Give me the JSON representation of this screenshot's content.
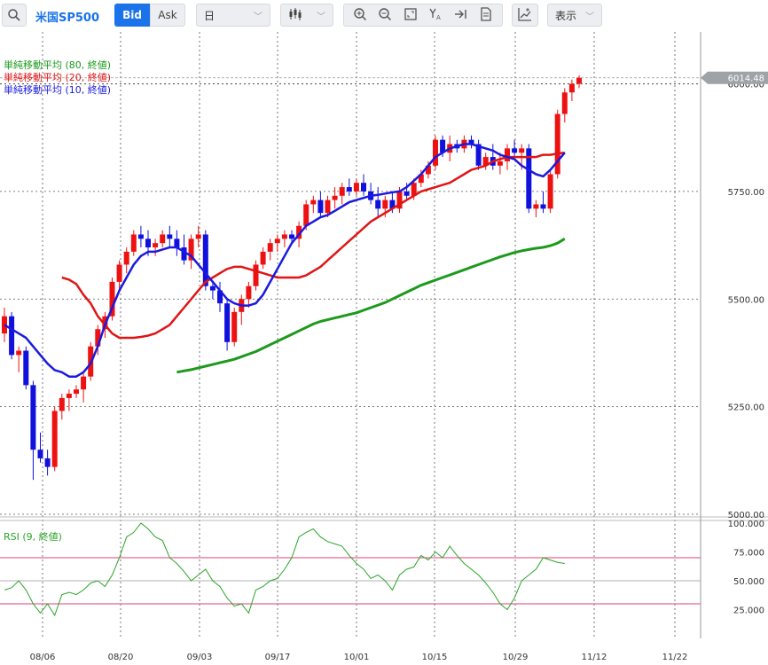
{
  "toolbar": {
    "symbol": "米国SP500",
    "bid_label": "Bid",
    "ask_label": "Ask",
    "period_value": "日",
    "view_label": "表示"
  },
  "legend": {
    "sma80": "単純移動平均 (80, 終値)",
    "sma20": "単純移動平均 (20, 終値)",
    "sma10": "単純移動平均 (10, 終値)",
    "rsi": "RSI (9, 終値)"
  },
  "colors": {
    "up": "#ee1111",
    "down": "#1111dd",
    "sma10": "#1a1adf",
    "sma20": "#e01515",
    "sma80": "#1c9a1c",
    "rsi": "#2aa52a",
    "rsi_band": "#e0407a",
    "accent": "#1a73e8"
  },
  "current_price_label": "6014.48",
  "chart_data": {
    "type": "candlestick",
    "x_tick_labels": [
      "08/06",
      "08/20",
      "09/03",
      "09/17",
      "10/01",
      "10/15",
      "10/29",
      "11/12",
      "11/22"
    ],
    "price_axis": {
      "ticks": [
        "6000.00",
        "5750.00",
        "5500.00",
        "5250.00",
        "5000.00"
      ],
      "tick_values": [
        6000,
        5750,
        5500,
        5250,
        5000
      ],
      "ylim": [
        5000,
        6100
      ]
    },
    "candles": [
      [
        5420,
        5480,
        5400,
        5460
      ],
      [
        5460,
        5470,
        5360,
        5370
      ],
      [
        5370,
        5390,
        5330,
        5380
      ],
      [
        5380,
        5390,
        5290,
        5300
      ],
      [
        5300,
        5310,
        5080,
        5150
      ],
      [
        5150,
        5190,
        5120,
        5130
      ],
      [
        5130,
        5150,
        5090,
        5110
      ],
      [
        5110,
        5250,
        5100,
        5240
      ],
      [
        5240,
        5280,
        5220,
        5270
      ],
      [
        5270,
        5290,
        5240,
        5280
      ],
      [
        5280,
        5300,
        5270,
        5290
      ],
      [
        5290,
        5330,
        5260,
        5320
      ],
      [
        5320,
        5400,
        5310,
        5390
      ],
      [
        5390,
        5440,
        5370,
        5430
      ],
      [
        5430,
        5470,
        5410,
        5460
      ],
      [
        5460,
        5550,
        5450,
        5540
      ],
      [
        5540,
        5590,
        5520,
        5580
      ],
      [
        5580,
        5620,
        5560,
        5610
      ],
      [
        5610,
        5660,
        5600,
        5650
      ],
      [
        5650,
        5670,
        5620,
        5640
      ],
      [
        5640,
        5660,
        5600,
        5620
      ],
      [
        5620,
        5640,
        5600,
        5630
      ],
      [
        5630,
        5660,
        5620,
        5650
      ],
      [
        5650,
        5670,
        5620,
        5640
      ],
      [
        5640,
        5660,
        5600,
        5620
      ],
      [
        5620,
        5650,
        5580,
        5590
      ],
      [
        5590,
        5650,
        5570,
        5640
      ],
      [
        5640,
        5670,
        5620,
        5650
      ],
      [
        5650,
        5660,
        5520,
        5530
      ],
      [
        5530,
        5540,
        5500,
        5520
      ],
      [
        5520,
        5540,
        5470,
        5490
      ],
      [
        5490,
        5500,
        5380,
        5400
      ],
      [
        5400,
        5480,
        5390,
        5470
      ],
      [
        5470,
        5510,
        5440,
        5500
      ],
      [
        5500,
        5540,
        5480,
        5530
      ],
      [
        5530,
        5590,
        5520,
        5580
      ],
      [
        5580,
        5620,
        5570,
        5610
      ],
      [
        5610,
        5640,
        5590,
        5630
      ],
      [
        5630,
        5650,
        5610,
        5640
      ],
      [
        5640,
        5660,
        5620,
        5650
      ],
      [
        5650,
        5660,
        5630,
        5640
      ],
      [
        5640,
        5680,
        5620,
        5670
      ],
      [
        5670,
        5730,
        5660,
        5720
      ],
      [
        5720,
        5740,
        5700,
        5730
      ],
      [
        5730,
        5750,
        5690,
        5700
      ],
      [
        5700,
        5740,
        5690,
        5730
      ],
      [
        5730,
        5760,
        5710,
        5740
      ],
      [
        5740,
        5770,
        5720,
        5760
      ],
      [
        5760,
        5780,
        5740,
        5750
      ],
      [
        5750,
        5780,
        5740,
        5770
      ],
      [
        5770,
        5790,
        5740,
        5750
      ],
      [
        5750,
        5770,
        5720,
        5730
      ],
      [
        5730,
        5760,
        5690,
        5710
      ],
      [
        5710,
        5740,
        5690,
        5730
      ],
      [
        5730,
        5750,
        5700,
        5710
      ],
      [
        5710,
        5760,
        5700,
        5750
      ],
      [
        5750,
        5770,
        5730,
        5740
      ],
      [
        5740,
        5780,
        5730,
        5770
      ],
      [
        5770,
        5800,
        5760,
        5790
      ],
      [
        5790,
        5820,
        5780,
        5810
      ],
      [
        5810,
        5880,
        5800,
        5870
      ],
      [
        5870,
        5880,
        5830,
        5840
      ],
      [
        5840,
        5880,
        5820,
        5860
      ],
      [
        5860,
        5870,
        5840,
        5850
      ],
      [
        5850,
        5880,
        5840,
        5870
      ],
      [
        5870,
        5880,
        5850,
        5860
      ],
      [
        5860,
        5870,
        5800,
        5810
      ],
      [
        5810,
        5840,
        5800,
        5830
      ],
      [
        5830,
        5860,
        5800,
        5810
      ],
      [
        5810,
        5840,
        5790,
        5820
      ],
      [
        5820,
        5860,
        5800,
        5850
      ],
      [
        5850,
        5870,
        5830,
        5840
      ],
      [
        5840,
        5860,
        5800,
        5850
      ],
      [
        5850,
        5860,
        5700,
        5710
      ],
      [
        5710,
        5730,
        5690,
        5720
      ],
      [
        5720,
        5750,
        5700,
        5710
      ],
      [
        5710,
        5800,
        5700,
        5790
      ],
      [
        5790,
        5940,
        5780,
        5930
      ],
      [
        5930,
        5990,
        5910,
        5980
      ],
      [
        5980,
        6010,
        5960,
        6000
      ],
      [
        6000,
        6020,
        5990,
        6014
      ]
    ],
    "sma10": [
      5440,
      5430,
      5420,
      5410,
      5390,
      5370,
      5350,
      5335,
      5330,
      5320,
      5320,
      5330,
      5350,
      5390,
      5440,
      5480,
      5520,
      5550,
      5580,
      5600,
      5610,
      5610,
      5615,
      5620,
      5620,
      5610,
      5600,
      5580,
      5560,
      5540,
      5520,
      5500,
      5490,
      5485,
      5485,
      5490,
      5510,
      5540,
      5570,
      5600,
      5630,
      5650,
      5670,
      5680,
      5690,
      5695,
      5705,
      5715,
      5725,
      5730,
      5735,
      5740,
      5742,
      5745,
      5748,
      5750,
      5760,
      5775,
      5790,
      5810,
      5830,
      5840,
      5850,
      5855,
      5860,
      5860,
      5855,
      5850,
      5845,
      5835,
      5830,
      5825,
      5810,
      5800,
      5790,
      5785,
      5800,
      5820,
      5840
    ],
    "sma20": [
      5550,
      5545,
      5535,
      5510,
      5490,
      5460,
      5440,
      5420,
      5410,
      5410,
      5410,
      5412,
      5415,
      5420,
      5430,
      5440,
      5460,
      5480,
      5500,
      5520,
      5540,
      5550,
      5560,
      5570,
      5575,
      5575,
      5570,
      5565,
      5560,
      5555,
      5550,
      5550,
      5550,
      5550,
      5555,
      5565,
      5575,
      5590,
      5605,
      5620,
      5635,
      5650,
      5665,
      5680,
      5690,
      5700,
      5710,
      5720,
      5730,
      5740,
      5750,
      5755,
      5760,
      5765,
      5770,
      5780,
      5790,
      5800,
      5805,
      5810,
      5820,
      5825,
      5830,
      5830,
      5830,
      5830,
      5830,
      5835,
      5835,
      5838,
      5840
    ],
    "sma80": [
      5330,
      5333,
      5336,
      5340,
      5344,
      5348,
      5352,
      5356,
      5360,
      5366,
      5372,
      5378,
      5386,
      5394,
      5402,
      5410,
      5418,
      5426,
      5434,
      5442,
      5448,
      5452,
      5456,
      5460,
      5464,
      5468,
      5474,
      5480,
      5486,
      5492,
      5500,
      5508,
      5516,
      5524,
      5532,
      5538,
      5544,
      5550,
      5556,
      5562,
      5568,
      5574,
      5580,
      5586,
      5592,
      5598,
      5603,
      5608,
      5612,
      5615,
      5618,
      5620,
      5624,
      5630,
      5640
    ],
    "rsi": {
      "axis_ticks": [
        "100.000",
        "75.000",
        "50.000",
        "25.000"
      ],
      "tick_values": [
        100,
        75,
        50,
        25
      ],
      "overbought": 70,
      "oversold": 30,
      "values": [
        42,
        44,
        50,
        42,
        30,
        22,
        30,
        20,
        38,
        40,
        38,
        42,
        48,
        50,
        45,
        55,
        70,
        88,
        92,
        100,
        95,
        88,
        85,
        70,
        65,
        58,
        50,
        55,
        60,
        50,
        45,
        35,
        28,
        30,
        22,
        42,
        45,
        50,
        52,
        60,
        70,
        88,
        92,
        95,
        88,
        84,
        82,
        80,
        72,
        65,
        60,
        52,
        55,
        50,
        42,
        55,
        60,
        62,
        72,
        68,
        75,
        70,
        80,
        72,
        65,
        60,
        55,
        48,
        40,
        30,
        25,
        35,
        50,
        55,
        60,
        70,
        68,
        66,
        65
      ]
    }
  }
}
